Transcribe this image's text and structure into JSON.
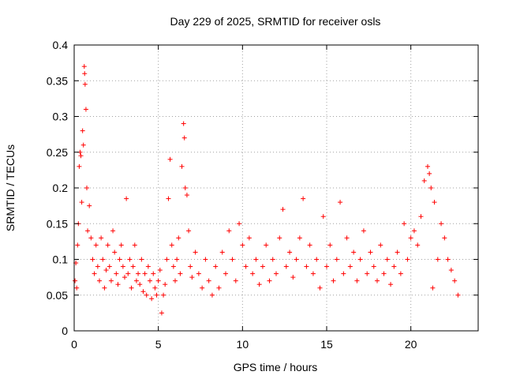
{
  "chart_data": {
    "type": "scatter",
    "title": "Day 229 of 2025, SRMTID for receiver osls",
    "xlabel": "GPS time / hours",
    "ylabel": "SRMTID / TECUs",
    "xlim": [
      0,
      24
    ],
    "ylim": [
      0,
      0.4
    ],
    "xticks": [
      0,
      5,
      10,
      15,
      20
    ],
    "xtick_labels": [
      "0",
      "5",
      "10",
      "15",
      "20"
    ],
    "yticks": [
      0,
      0.05,
      0.1,
      0.15,
      0.2,
      0.25,
      0.3,
      0.35,
      0.4
    ],
    "ytick_labels": [
      "0",
      "0.05",
      "0.1",
      "0.15",
      "0.2",
      "0.25",
      "0.3",
      "0.35",
      "0.4"
    ],
    "grid": true,
    "marker": "plus",
    "color": "#ff0000",
    "series": [
      {
        "name": "SRMTID",
        "points": [
          [
            0.05,
            0.07
          ],
          [
            0.1,
            0.095
          ],
          [
            0.15,
            0.06
          ],
          [
            0.2,
            0.12
          ],
          [
            0.25,
            0.15
          ],
          [
            0.3,
            0.23
          ],
          [
            0.35,
            0.25
          ],
          [
            0.4,
            0.245
          ],
          [
            0.45,
            0.18
          ],
          [
            0.5,
            0.28
          ],
          [
            0.55,
            0.26
          ],
          [
            0.6,
            0.37
          ],
          [
            0.62,
            0.36
          ],
          [
            0.65,
            0.345
          ],
          [
            0.7,
            0.31
          ],
          [
            0.75,
            0.2
          ],
          [
            0.8,
            0.14
          ],
          [
            0.9,
            0.175
          ],
          [
            1.0,
            0.13
          ],
          [
            1.1,
            0.1
          ],
          [
            1.2,
            0.08
          ],
          [
            1.3,
            0.12
          ],
          [
            1.4,
            0.09
          ],
          [
            1.5,
            0.07
          ],
          [
            1.6,
            0.13
          ],
          [
            1.7,
            0.1
          ],
          [
            1.8,
            0.06
          ],
          [
            1.9,
            0.085
          ],
          [
            2.0,
            0.12
          ],
          [
            2.1,
            0.09
          ],
          [
            2.2,
            0.07
          ],
          [
            2.3,
            0.14
          ],
          [
            2.4,
            0.11
          ],
          [
            2.5,
            0.08
          ],
          [
            2.6,
            0.065
          ],
          [
            2.7,
            0.1
          ],
          [
            2.8,
            0.12
          ],
          [
            2.9,
            0.09
          ],
          [
            3.0,
            0.075
          ],
          [
            3.1,
            0.185
          ],
          [
            3.2,
            0.08
          ],
          [
            3.3,
            0.1
          ],
          [
            3.4,
            0.06
          ],
          [
            3.5,
            0.09
          ],
          [
            3.6,
            0.12
          ],
          [
            3.7,
            0.07
          ],
          [
            3.8,
            0.08
          ],
          [
            3.9,
            0.065
          ],
          [
            4.0,
            0.1
          ],
          [
            4.1,
            0.055
          ],
          [
            4.2,
            0.08
          ],
          [
            4.3,
            0.05
          ],
          [
            4.4,
            0.09
          ],
          [
            4.5,
            0.07
          ],
          [
            4.6,
            0.045
          ],
          [
            4.7,
            0.08
          ],
          [
            4.8,
            0.06
          ],
          [
            4.9,
            0.05
          ],
          [
            5.0,
            0.07
          ],
          [
            5.1,
            0.085
          ],
          [
            5.2,
            0.025
          ],
          [
            5.3,
            0.05
          ],
          [
            5.4,
            0.065
          ],
          [
            5.5,
            0.1
          ],
          [
            5.6,
            0.185
          ],
          [
            5.7,
            0.24
          ],
          [
            5.8,
            0.12
          ],
          [
            5.9,
            0.09
          ],
          [
            6.0,
            0.07
          ],
          [
            6.1,
            0.1
          ],
          [
            6.2,
            0.13
          ],
          [
            6.3,
            0.08
          ],
          [
            6.4,
            0.23
          ],
          [
            6.5,
            0.29
          ],
          [
            6.55,
            0.27
          ],
          [
            6.6,
            0.2
          ],
          [
            6.7,
            0.19
          ],
          [
            6.8,
            0.14
          ],
          [
            6.9,
            0.09
          ],
          [
            7.0,
            0.075
          ],
          [
            7.2,
            0.11
          ],
          [
            7.4,
            0.08
          ],
          [
            7.6,
            0.06
          ],
          [
            7.8,
            0.1
          ],
          [
            8.0,
            0.07
          ],
          [
            8.2,
            0.05
          ],
          [
            8.4,
            0.09
          ],
          [
            8.6,
            0.06
          ],
          [
            8.8,
            0.11
          ],
          [
            9.0,
            0.08
          ],
          [
            9.2,
            0.14
          ],
          [
            9.4,
            0.1
          ],
          [
            9.6,
            0.07
          ],
          [
            9.8,
            0.15
          ],
          [
            10.0,
            0.12
          ],
          [
            10.2,
            0.09
          ],
          [
            10.4,
            0.13
          ],
          [
            10.6,
            0.08
          ],
          [
            10.8,
            0.1
          ],
          [
            11.0,
            0.065
          ],
          [
            11.2,
            0.09
          ],
          [
            11.4,
            0.12
          ],
          [
            11.6,
            0.07
          ],
          [
            11.8,
            0.1
          ],
          [
            12.0,
            0.08
          ],
          [
            12.2,
            0.13
          ],
          [
            12.4,
            0.17
          ],
          [
            12.6,
            0.09
          ],
          [
            12.8,
            0.11
          ],
          [
            13.0,
            0.075
          ],
          [
            13.2,
            0.1
          ],
          [
            13.4,
            0.13
          ],
          [
            13.6,
            0.185
          ],
          [
            13.8,
            0.09
          ],
          [
            14.0,
            0.12
          ],
          [
            14.2,
            0.08
          ],
          [
            14.4,
            0.1
          ],
          [
            14.6,
            0.06
          ],
          [
            14.8,
            0.16
          ],
          [
            15.0,
            0.09
          ],
          [
            15.2,
            0.12
          ],
          [
            15.4,
            0.07
          ],
          [
            15.6,
            0.1
          ],
          [
            15.8,
            0.18
          ],
          [
            16.0,
            0.08
          ],
          [
            16.2,
            0.13
          ],
          [
            16.4,
            0.09
          ],
          [
            16.6,
            0.11
          ],
          [
            16.8,
            0.07
          ],
          [
            17.0,
            0.1
          ],
          [
            17.2,
            0.14
          ],
          [
            17.4,
            0.08
          ],
          [
            17.6,
            0.11
          ],
          [
            17.8,
            0.09
          ],
          [
            18.0,
            0.07
          ],
          [
            18.2,
            0.12
          ],
          [
            18.4,
            0.08
          ],
          [
            18.6,
            0.1
          ],
          [
            18.8,
            0.065
          ],
          [
            19.0,
            0.09
          ],
          [
            19.2,
            0.11
          ],
          [
            19.4,
            0.08
          ],
          [
            19.6,
            0.15
          ],
          [
            19.8,
            0.1
          ],
          [
            20.0,
            0.13
          ],
          [
            20.2,
            0.14
          ],
          [
            20.4,
            0.12
          ],
          [
            20.6,
            0.16
          ],
          [
            20.8,
            0.21
          ],
          [
            21.0,
            0.23
          ],
          [
            21.1,
            0.22
          ],
          [
            21.2,
            0.2
          ],
          [
            21.3,
            0.06
          ],
          [
            21.4,
            0.18
          ],
          [
            21.6,
            0.1
          ],
          [
            21.8,
            0.15
          ],
          [
            22.0,
            0.13
          ],
          [
            22.2,
            0.1
          ],
          [
            22.4,
            0.085
          ],
          [
            22.6,
            0.07
          ],
          [
            22.8,
            0.05
          ]
        ]
      }
    ]
  }
}
